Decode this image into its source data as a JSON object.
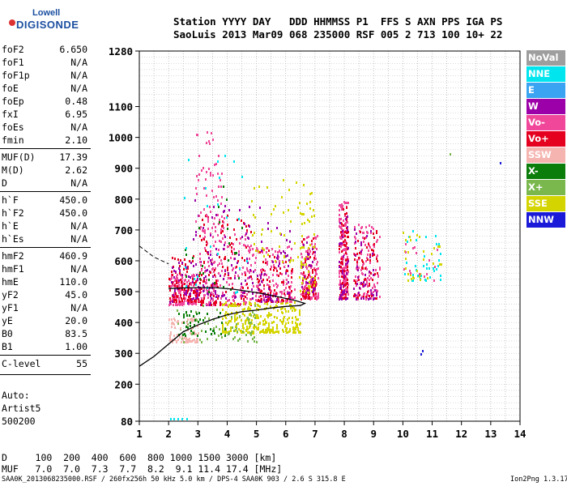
{
  "logo": {
    "top": "Lowell",
    "bottom": "DIGISONDE"
  },
  "header": {
    "line1": "Station YYYY DAY   DDD HHMMSS P1  FFS S AXN PPS IGA PS",
    "line2": "SaoLuis 2013 Mar09 068 235000 RSF 005 2 713 100 10+ 22"
  },
  "params": [
    {
      "k": "foF2",
      "v": "6.650"
    },
    {
      "k": "foF1",
      "v": "N/A"
    },
    {
      "k": "foF1p",
      "v": "N/A"
    },
    {
      "k": "foE",
      "v": "N/A"
    },
    {
      "k": "foEp",
      "v": "0.48"
    },
    {
      "k": "fxI",
      "v": "6.95"
    },
    {
      "k": "foEs",
      "v": "N/A"
    },
    {
      "k": "fmin",
      "v": "2.10"
    },
    {
      "k": "MUF(D)",
      "v": "17.39"
    },
    {
      "k": "M(D)",
      "v": "2.62"
    },
    {
      "k": "D",
      "v": "N/A"
    },
    {
      "k": "h`F",
      "v": "450.0"
    },
    {
      "k": "h`F2",
      "v": "450.0"
    },
    {
      "k": "h`E",
      "v": "N/A"
    },
    {
      "k": "h`Es",
      "v": "N/A"
    },
    {
      "k": "hmF2",
      "v": "460.9"
    },
    {
      "k": "hmF1",
      "v": "N/A"
    },
    {
      "k": "hmE",
      "v": "110.0"
    },
    {
      "k": "yF2",
      "v": "45.0"
    },
    {
      "k": "yF1",
      "v": "N/A"
    },
    {
      "k": "yE",
      "v": "20.0"
    },
    {
      "k": "B0",
      "v": "83.5"
    },
    {
      "k": "B1",
      "v": "1.00"
    },
    {
      "k": "C-level",
      "v": "55"
    }
  ],
  "auto": {
    "label": "Auto:",
    "artist": "Artist5",
    "version": "500200"
  },
  "legend": [
    {
      "label": "NoVal",
      "color": "#9e9e9e"
    },
    {
      "label": "NNE",
      "color": "#00e5ee"
    },
    {
      "label": "E",
      "color": "#3ba4f2"
    },
    {
      "label": "W",
      "color": "#9c00a8"
    },
    {
      "label": "Vo-",
      "color": "#f0479a"
    },
    {
      "label": "Vo+",
      "color": "#e4001e"
    },
    {
      "label": "SSW",
      "color": "#f5b4b0"
    },
    {
      "label": "X-",
      "color": "#0a7d0a"
    },
    {
      "label": "X+",
      "color": "#7ab84e"
    },
    {
      "label": "SSE",
      "color": "#d4d400"
    },
    {
      "label": "NNW",
      "color": "#1a1ad8"
    }
  ],
  "table": {
    "d_row": "D     100  200  400  600  800 1000 1500 3000 [km]",
    "muf_row": "MUF   7.0  7.0  7.3  7.7  8.2  9.1 11.4 17.4 [MHz]"
  },
  "footer": {
    "left": "SAA0K_2013068235000.RSF / 260fx256h 50 kHz 5.0 km / DPS-4 SAA0K 903 / 2.6 S 315.8 E",
    "right": "Ion2Png 1.3.17"
  },
  "chart_data": {
    "type": "scatter",
    "title": "",
    "xlabel": "",
    "ylabel": "",
    "xlim": [
      1,
      14
    ],
    "ylim": [
      80,
      1280
    ],
    "x_ticks": [
      1,
      2,
      3,
      4,
      5,
      6,
      7,
      8,
      9,
      10,
      11,
      12,
      13,
      14
    ],
    "y_ticks": [
      80,
      200,
      300,
      400,
      500,
      600,
      700,
      800,
      900,
      1000,
      1100,
      1280
    ],
    "grid": true,
    "clusters": [
      {
        "series": "Vo-",
        "x": [
          2.0,
          3.0
        ],
        "y": [
          460,
          560
        ],
        "n": 170
      },
      {
        "series": "Vo+",
        "x": [
          2.0,
          3.2
        ],
        "y": [
          470,
          620
        ],
        "n": 110
      },
      {
        "series": "W",
        "x": [
          2.0,
          3.5
        ],
        "y": [
          460,
          600
        ],
        "n": 70
      },
      {
        "series": "Vo-",
        "x": [
          3.0,
          4.8
        ],
        "y": [
          460,
          700
        ],
        "n": 190
      },
      {
        "series": "Vo+",
        "x": [
          3.0,
          4.8
        ],
        "y": [
          460,
          750
        ],
        "n": 100
      },
      {
        "series": "W",
        "x": [
          2.8,
          4.8
        ],
        "y": [
          480,
          800
        ],
        "n": 70
      },
      {
        "series": "Vo-",
        "x": [
          2.9,
          3.9
        ],
        "y": [
          700,
          1020
        ],
        "n": 70
      },
      {
        "series": "X-",
        "x": [
          2.5,
          4.5
        ],
        "y": [
          500,
          900
        ],
        "n": 25
      },
      {
        "series": "NNE",
        "x": [
          2.5,
          4.8
        ],
        "y": [
          500,
          950
        ],
        "n": 25
      },
      {
        "series": "SSE",
        "x": [
          3.8,
          6.5
        ],
        "y": [
          370,
          470
        ],
        "n": 300
      },
      {
        "series": "X+",
        "x": [
          2.2,
          5.0
        ],
        "y": [
          340,
          460
        ],
        "n": 70
      },
      {
        "series": "SSW",
        "x": [
          2.0,
          3.0
        ],
        "y": [
          340,
          420
        ],
        "n": 80
      },
      {
        "series": "X-",
        "x": [
          2.3,
          4.0
        ],
        "y": [
          360,
          440
        ],
        "n": 40
      },
      {
        "series": "Vo-",
        "x": [
          4.8,
          6.3
        ],
        "y": [
          470,
          650
        ],
        "n": 140
      },
      {
        "series": "Vo+",
        "x": [
          5.0,
          6.2
        ],
        "y": [
          470,
          640
        ],
        "n": 70
      },
      {
        "series": "W",
        "x": [
          4.8,
          6.2
        ],
        "y": [
          470,
          780
        ],
        "n": 60
      },
      {
        "series": "SSE",
        "x": [
          4.8,
          6.4
        ],
        "y": [
          600,
          870
        ],
        "n": 40
      },
      {
        "series": "Vo-",
        "x": [
          6.5,
          7.1
        ],
        "y": [
          480,
          690
        ],
        "n": 140
      },
      {
        "series": "Vo+",
        "x": [
          6.5,
          7.0
        ],
        "y": [
          480,
          680
        ],
        "n": 60
      },
      {
        "series": "SSE",
        "x": [
          6.4,
          7.0
        ],
        "y": [
          500,
          850
        ],
        "n": 60
      },
      {
        "series": "W",
        "x": [
          6.5,
          7.0
        ],
        "y": [
          500,
          680
        ],
        "n": 25
      },
      {
        "series": "Vo-",
        "x": [
          7.8,
          8.1
        ],
        "y": [
          480,
          800
        ],
        "n": 160
      },
      {
        "series": "Vo+",
        "x": [
          7.8,
          8.1
        ],
        "y": [
          480,
          780
        ],
        "n": 80
      },
      {
        "series": "W",
        "x": [
          7.8,
          8.1
        ],
        "y": [
          480,
          760
        ],
        "n": 40
      },
      {
        "series": "Vo-",
        "x": [
          8.3,
          9.2
        ],
        "y": [
          480,
          720
        ],
        "n": 120
      },
      {
        "series": "Vo+",
        "x": [
          8.3,
          9.1
        ],
        "y": [
          480,
          700
        ],
        "n": 60
      },
      {
        "series": "W",
        "x": [
          8.3,
          9.1
        ],
        "y": [
          480,
          720
        ],
        "n": 40
      },
      {
        "series": "NNE",
        "x": [
          10.0,
          11.3
        ],
        "y": [
          540,
          700
        ],
        "n": 35
      },
      {
        "series": "SSE",
        "x": [
          10.0,
          11.3
        ],
        "y": [
          540,
          700
        ],
        "n": 30
      },
      {
        "series": "Vo-",
        "x": [
          10.0,
          11.3
        ],
        "y": [
          540,
          680
        ],
        "n": 15
      }
    ],
    "isolated_points": [
      {
        "series": "NNE",
        "x": [
          2.05,
          2.15,
          2.3,
          2.45,
          2.6
        ],
        "y": [
          90,
          90,
          90,
          90,
          90
        ]
      },
      {
        "series": "NNW",
        "x": [
          10.6,
          10.65,
          13.3
        ],
        "y": [
          300,
          310,
          920
        ]
      },
      {
        "series": "X+",
        "x": [
          11.6
        ],
        "y": [
          950
        ]
      }
    ],
    "profile_curve": {
      "x": [
        1.0,
        1.5,
        2.0,
        2.5,
        3.0,
        3.5,
        4.0,
        4.5,
        5.0,
        5.5,
        6.0,
        6.5,
        6.65,
        6.3,
        5.8,
        5.3,
        4.8,
        4.2,
        3.6,
        3.0,
        2.5,
        2.0
      ],
      "y": [
        258,
        290,
        330,
        370,
        392,
        410,
        425,
        435,
        440,
        447,
        452,
        455,
        462,
        472,
        482,
        492,
        500,
        508,
        513,
        513,
        512,
        510
      ]
    },
    "dashed_curve": {
      "x": [
        1.0,
        1.5,
        2.0
      ],
      "y": [
        648,
        612,
        590
      ]
    }
  }
}
